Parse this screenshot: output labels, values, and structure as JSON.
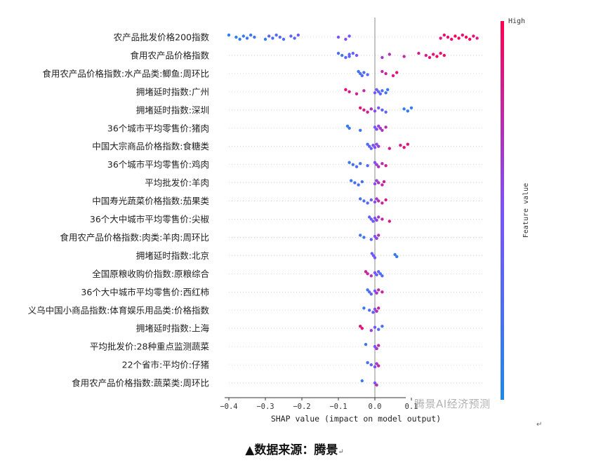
{
  "chart_data": {
    "type": "scatter",
    "subtype": "shap-beeswarm",
    "title": "",
    "xlabel": "SHAP value (impact on model output)",
    "xlim": [
      -0.4,
      0.3
    ],
    "xticks": [
      -0.4,
      -0.3,
      -0.2,
      -0.1,
      0.0,
      0.1
    ],
    "grid": false,
    "colorbar": {
      "label": "Feature value",
      "high": "High",
      "low_color": "#1e88e5",
      "high_color": "#ff0052"
    },
    "features": [
      {
        "name": "农产品批发价格200指数",
        "points": [
          [
            -0.4,
            0.05
          ],
          [
            -0.38,
            0.1
          ],
          [
            -0.37,
            0.1
          ],
          [
            -0.36,
            0.15
          ],
          [
            -0.35,
            0.2
          ],
          [
            -0.34,
            0.15
          ],
          [
            -0.33,
            0.2
          ],
          [
            -0.3,
            0.1
          ],
          [
            -0.29,
            0.35
          ],
          [
            -0.28,
            0.25
          ],
          [
            -0.27,
            0.3
          ],
          [
            -0.26,
            0.3
          ],
          [
            -0.25,
            0.25
          ],
          [
            -0.23,
            0.35
          ],
          [
            -0.22,
            0.3
          ],
          [
            -0.21,
            0.4
          ],
          [
            -0.1,
            0.5
          ],
          [
            -0.08,
            0.55
          ],
          [
            -0.07,
            0.45
          ],
          [
            0.18,
            0.85
          ],
          [
            0.19,
            0.9
          ],
          [
            0.2,
            0.95
          ],
          [
            0.21,
            0.9
          ],
          [
            0.22,
            1.0
          ],
          [
            0.23,
            0.95
          ],
          [
            0.24,
            0.9
          ],
          [
            0.25,
            1.0
          ],
          [
            0.26,
            0.95
          ],
          [
            0.27,
            0.9
          ],
          [
            0.28,
            0.85
          ]
        ]
      },
      {
        "name": "食用农产品价格指数",
        "points": [
          [
            -0.1,
            0.25
          ],
          [
            -0.09,
            0.2
          ],
          [
            -0.08,
            0.3
          ],
          [
            -0.07,
            0.4
          ],
          [
            -0.07,
            0.35
          ],
          [
            -0.06,
            0.3
          ],
          [
            -0.05,
            0.5
          ],
          [
            0.02,
            0.65
          ],
          [
            0.04,
            0.7
          ],
          [
            0.08,
            0.75
          ],
          [
            0.12,
            0.8
          ],
          [
            0.14,
            0.85
          ],
          [
            0.15,
            0.9
          ],
          [
            0.16,
            0.9
          ],
          [
            0.17,
            0.95
          ],
          [
            0.18,
            0.9
          ],
          [
            0.19,
            0.95
          ]
        ]
      },
      {
        "name": "食用农产品价格指数:水产品类:鲫鱼:周环比",
        "points": [
          [
            -0.045,
            0.2
          ],
          [
            -0.04,
            0.25
          ],
          [
            -0.035,
            0.3
          ],
          [
            -0.03,
            0.2
          ],
          [
            -0.02,
            0.3
          ],
          [
            0.02,
            0.75
          ],
          [
            0.03,
            0.8
          ],
          [
            0.05,
            0.85
          ],
          [
            0.06,
            0.9
          ]
        ]
      },
      {
        "name": "拥堵延时指数:广州",
        "points": [
          [
            -0.08,
            0.9
          ],
          [
            -0.07,
            0.85
          ],
          [
            -0.05,
            0.8
          ],
          [
            -0.03,
            0.75
          ],
          [
            0.0,
            0.45
          ],
          [
            0.005,
            0.4
          ],
          [
            0.01,
            0.35
          ],
          [
            0.015,
            0.3
          ],
          [
            0.02,
            0.25
          ],
          [
            0.03,
            0.2
          ],
          [
            0.035,
            0.15
          ]
        ]
      },
      {
        "name": "拥堵延时指数:深圳",
        "points": [
          [
            -0.04,
            0.9
          ],
          [
            -0.03,
            0.85
          ],
          [
            -0.02,
            0.8
          ],
          [
            -0.01,
            0.7
          ],
          [
            0.0,
            0.55
          ],
          [
            0.01,
            0.45
          ],
          [
            0.02,
            0.35
          ],
          [
            0.03,
            0.3
          ],
          [
            0.08,
            0.15
          ],
          [
            0.09,
            0.1
          ],
          [
            0.1,
            0.1
          ]
        ]
      },
      {
        "name": "36个城市平均零售价:猪肉",
        "points": [
          [
            -0.075,
            0.1
          ],
          [
            -0.07,
            0.15
          ],
          [
            -0.04,
            0.2
          ],
          [
            0.0,
            0.45
          ],
          [
            0.005,
            0.55
          ],
          [
            0.01,
            0.6
          ],
          [
            0.015,
            0.65
          ],
          [
            0.02,
            0.7
          ],
          [
            0.03,
            0.75
          ]
        ]
      },
      {
        "name": "中国大宗商品价格指数:食糖类",
        "points": [
          [
            -0.02,
            0.25
          ],
          [
            -0.015,
            0.35
          ],
          [
            -0.01,
            0.4
          ],
          [
            -0.005,
            0.45
          ],
          [
            0.0,
            0.5
          ],
          [
            0.005,
            0.55
          ],
          [
            0.01,
            0.65
          ],
          [
            0.04,
            0.8
          ],
          [
            0.07,
            0.85
          ],
          [
            0.08,
            0.9
          ],
          [
            0.09,
            0.9
          ]
        ]
      },
      {
        "name": "36个城市平均零售价:鸡肉",
        "points": [
          [
            -0.07,
            0.15
          ],
          [
            -0.06,
            0.2
          ],
          [
            -0.05,
            0.25
          ],
          [
            -0.04,
            0.2
          ],
          [
            -0.02,
            0.3
          ],
          [
            0.0,
            0.5
          ],
          [
            0.005,
            0.6
          ],
          [
            0.01,
            0.7
          ],
          [
            0.02,
            0.75
          ],
          [
            0.03,
            0.8
          ]
        ]
      },
      {
        "name": "平均批发价:羊肉",
        "points": [
          [
            -0.065,
            0.15
          ],
          [
            -0.055,
            0.2
          ],
          [
            -0.045,
            0.25
          ],
          [
            -0.035,
            0.2
          ],
          [
            0.0,
            0.55
          ],
          [
            0.005,
            0.6
          ],
          [
            0.01,
            0.7
          ],
          [
            0.02,
            0.75
          ],
          [
            0.025,
            0.8
          ]
        ]
      },
      {
        "name": "中国寿光蔬菜价格指数:茄果类",
        "points": [
          [
            -0.04,
            0.2
          ],
          [
            -0.03,
            0.25
          ],
          [
            -0.02,
            0.3
          ],
          [
            -0.01,
            0.4
          ],
          [
            0.0,
            0.55
          ],
          [
            0.005,
            0.65
          ],
          [
            0.01,
            0.75
          ],
          [
            0.02,
            0.8
          ],
          [
            0.03,
            0.85
          ]
        ]
      },
      {
        "name": "36个大中城市平均零售价:尖椒",
        "points": [
          [
            -0.015,
            0.35
          ],
          [
            -0.01,
            0.4
          ],
          [
            -0.005,
            0.45
          ],
          [
            0.0,
            0.5
          ],
          [
            0.005,
            0.6
          ],
          [
            0.01,
            0.65
          ],
          [
            0.02,
            0.75
          ],
          [
            0.04,
            0.85
          ]
        ]
      },
      {
        "name": "食用农产品价格指数:肉类:羊肉:周环比",
        "points": [
          [
            -0.04,
            0.15
          ],
          [
            -0.03,
            0.2
          ],
          [
            -0.01,
            0.35
          ],
          [
            0.0,
            0.5
          ],
          [
            0.005,
            0.6
          ],
          [
            0.01,
            0.7
          ]
        ]
      },
      {
        "name": "拥堵延时指数:北京",
        "points": [
          [
            -0.008,
            0.4
          ],
          [
            -0.004,
            0.45
          ],
          [
            0.0,
            0.5
          ],
          [
            0.055,
            0.15
          ],
          [
            0.06,
            0.1
          ]
        ]
      },
      {
        "name": "全国原粮收购价指数:原粮综合",
        "points": [
          [
            -0.025,
            0.8
          ],
          [
            -0.02,
            0.75
          ],
          [
            -0.01,
            0.7
          ],
          [
            0.0,
            0.5
          ],
          [
            0.005,
            0.4
          ],
          [
            0.01,
            0.35
          ],
          [
            0.015,
            0.3
          ],
          [
            0.02,
            0.25
          ]
        ]
      },
      {
        "name": "36个大中城市平均零售价:西红柿",
        "points": [
          [
            -0.02,
            0.2
          ],
          [
            -0.015,
            0.25
          ],
          [
            -0.01,
            0.35
          ],
          [
            0.0,
            0.5
          ],
          [
            0.005,
            0.65
          ],
          [
            0.01,
            0.75
          ],
          [
            0.02,
            0.8
          ]
        ]
      },
      {
        "name": "义乌中国小商品指数:体育娱乐用品类:价格指数",
        "points": [
          [
            -0.03,
            0.15
          ],
          [
            -0.015,
            0.25
          ],
          [
            -0.005,
            0.4
          ],
          [
            0.0,
            0.55
          ],
          [
            0.005,
            0.7
          ],
          [
            0.01,
            0.8
          ]
        ]
      },
      {
        "name": "拥堵延时指数:上海",
        "points": [
          [
            -0.04,
            0.9
          ],
          [
            -0.035,
            0.85
          ],
          [
            -0.01,
            0.6
          ],
          [
            0.0,
            0.45
          ],
          [
            0.01,
            0.3
          ],
          [
            0.02,
            0.2
          ]
        ]
      },
      {
        "name": "平均批发价:28种重点监测蔬菜",
        "points": [
          [
            -0.025,
            0.2
          ],
          [
            0.0,
            0.5
          ],
          [
            0.005,
            0.65
          ],
          [
            0.01,
            0.75
          ]
        ]
      },
      {
        "name": "22个省市:平均价:仔猪",
        "points": [
          [
            -0.02,
            0.2
          ],
          [
            -0.01,
            0.3
          ],
          [
            0.0,
            0.5
          ],
          [
            0.005,
            0.65
          ],
          [
            0.01,
            0.75
          ]
        ]
      },
      {
        "name": "食用农产品价格指数:蔬菜类:周环比",
        "points": [
          [
            -0.035,
            0.15
          ],
          [
            0.0,
            0.5
          ],
          [
            0.005,
            0.7
          ]
        ]
      }
    ]
  },
  "watermark": "腾景AI经济预测",
  "caption": "▲数据来源：腾景",
  "para_mark_right": "↵",
  "para_mark_caption": "↵"
}
